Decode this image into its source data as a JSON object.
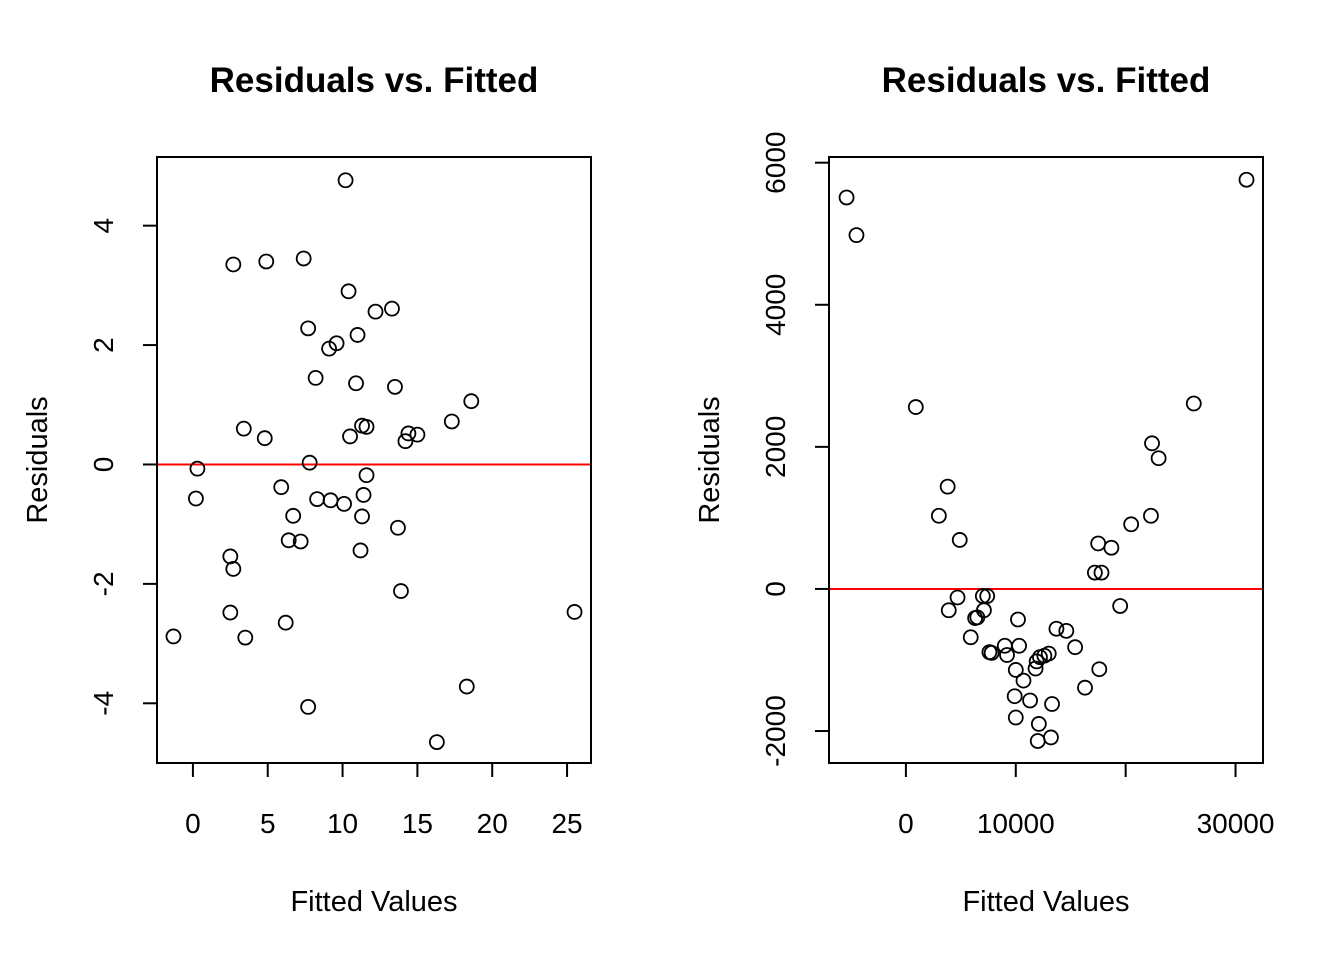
{
  "chart_data": [
    {
      "type": "scatter",
      "title": "Residuals vs. Fitted",
      "xlabel": "Fitted Values",
      "ylabel": "Residuals",
      "xlim": [
        -2.4,
        26.6
      ],
      "ylim": [
        -5.0,
        5.15
      ],
      "xticks": [
        0,
        5,
        10,
        15,
        20,
        25
      ],
      "yticks": [
        -4,
        -2,
        0,
        2,
        4
      ],
      "xtick_labels": [
        "0",
        "5",
        "10",
        "15",
        "20",
        "25"
      ],
      "ytick_labels": [
        "-4",
        "-2",
        "0",
        "2",
        "4"
      ],
      "reference_line": {
        "y": 0,
        "color": "#ff0000"
      },
      "grid": false,
      "points": [
        [
          -1.3,
          -2.88
        ],
        [
          0.2,
          -0.57
        ],
        [
          0.3,
          -0.07
        ],
        [
          2.5,
          -1.54
        ],
        [
          2.7,
          -1.75
        ],
        [
          2.5,
          -2.48
        ],
        [
          2.7,
          3.35
        ],
        [
          3.4,
          0.6
        ],
        [
          3.5,
          -2.9
        ],
        [
          4.8,
          0.44
        ],
        [
          4.9,
          3.4
        ],
        [
          5.9,
          -0.38
        ],
        [
          6.2,
          -2.65
        ],
        [
          6.4,
          -1.27
        ],
        [
          6.7,
          -0.86
        ],
        [
          7.2,
          -1.29
        ],
        [
          7.4,
          3.45
        ],
        [
          7.7,
          2.28
        ],
        [
          7.7,
          -4.06
        ],
        [
          7.8,
          0.03
        ],
        [
          8.2,
          1.45
        ],
        [
          8.3,
          -0.58
        ],
        [
          9.1,
          1.94
        ],
        [
          9.2,
          -0.6
        ],
        [
          9.6,
          2.03
        ],
        [
          10.1,
          -0.66
        ],
        [
          10.2,
          4.76
        ],
        [
          10.4,
          2.9
        ],
        [
          10.5,
          0.47
        ],
        [
          10.9,
          1.36
        ],
        [
          11.0,
          2.17
        ],
        [
          11.2,
          -1.44
        ],
        [
          11.3,
          -0.87
        ],
        [
          11.3,
          0.65
        ],
        [
          11.4,
          -0.51
        ],
        [
          11.6,
          0.63
        ],
        [
          11.6,
          -0.18
        ],
        [
          12.2,
          2.56
        ],
        [
          13.3,
          2.61
        ],
        [
          13.5,
          1.3
        ],
        [
          13.7,
          -1.06
        ],
        [
          13.9,
          -2.12
        ],
        [
          14.2,
          0.39
        ],
        [
          14.4,
          0.52
        ],
        [
          15.0,
          0.5
        ],
        [
          16.3,
          -4.65
        ],
        [
          17.3,
          0.72
        ],
        [
          18.3,
          -3.72
        ],
        [
          18.6,
          1.06
        ],
        [
          25.5,
          -2.47
        ]
      ]
    },
    {
      "type": "scatter",
      "title": "Residuals vs. Fitted",
      "xlabel": "Fitted Values",
      "ylabel": "Residuals",
      "xlim": [
        -7000,
        32500
      ],
      "ylim": [
        -2450,
        6080
      ],
      "xticks": [
        0,
        10000,
        20000,
        30000
      ],
      "xtick_labels": [
        "0",
        "10000",
        "",
        "30000"
      ],
      "yticks": [
        -2000,
        0,
        2000,
        4000,
        6000
      ],
      "ytick_labels": [
        "-2000",
        "0",
        "2000",
        "4000",
        "6000"
      ],
      "reference_line": {
        "y": 0,
        "color": "#ff0000"
      },
      "grid": false,
      "points": [
        [
          -5400,
          5510
        ],
        [
          -4500,
          4980
        ],
        [
          900,
          2560
        ],
        [
          3000,
          1030
        ],
        [
          3800,
          1440
        ],
        [
          3900,
          -300
        ],
        [
          4700,
          -120
        ],
        [
          4900,
          690
        ],
        [
          5900,
          -680
        ],
        [
          6300,
          -410
        ],
        [
          6500,
          -400
        ],
        [
          7100,
          -300
        ],
        [
          7000,
          -100
        ],
        [
          7400,
          -100
        ],
        [
          7600,
          -890
        ],
        [
          7800,
          -900
        ],
        [
          9000,
          -800
        ],
        [
          9200,
          -930
        ],
        [
          9900,
          -1510
        ],
        [
          10000,
          -1140
        ],
        [
          10000,
          -1810
        ],
        [
          10200,
          -430
        ],
        [
          10300,
          -800
        ],
        [
          10700,
          -1290
        ],
        [
          11300,
          -1570
        ],
        [
          11800,
          -1120
        ],
        [
          11900,
          -1020
        ],
        [
          12000,
          -2140
        ],
        [
          12100,
          -1900
        ],
        [
          12200,
          -960
        ],
        [
          12600,
          -940
        ],
        [
          13000,
          -910
        ],
        [
          13200,
          -2090
        ],
        [
          13300,
          -1620
        ],
        [
          13700,
          -560
        ],
        [
          14600,
          -590
        ],
        [
          15400,
          -820
        ],
        [
          16300,
          -1390
        ],
        [
          17200,
          230
        ],
        [
          17500,
          640
        ],
        [
          17600,
          -1130
        ],
        [
          17800,
          230
        ],
        [
          18700,
          580
        ],
        [
          19500,
          -240
        ],
        [
          20500,
          910
        ],
        [
          22300,
          1030
        ],
        [
          22400,
          2050
        ],
        [
          23000,
          1840
        ],
        [
          26200,
          2610
        ],
        [
          31000,
          5760
        ]
      ]
    }
  ]
}
